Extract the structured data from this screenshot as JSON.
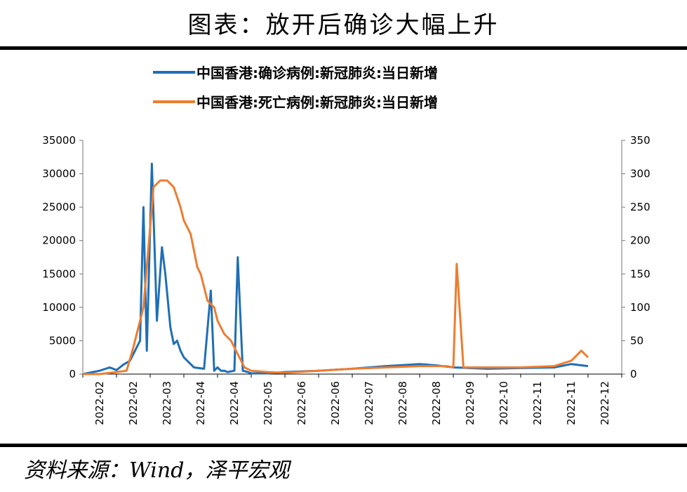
{
  "figure_title": "图表：放开后确诊大幅上升",
  "source": "资料来源：Wind，泽平宏观",
  "chart_data": {
    "type": "line",
    "title": "",
    "x_tick_labels": [
      "2022-02",
      "2022-02",
      "2022-03",
      "2022-04",
      "2022-04",
      "2022-05",
      "2022-06",
      "2022-06",
      "2022-07",
      "2022-08",
      "2022-08",
      "2022-09",
      "2022-10",
      "2022-11",
      "2022-11",
      "2022-12"
    ],
    "y_left": {
      "range": [
        0,
        35000
      ],
      "ticks": [
        "0",
        "5000",
        "10000",
        "15000",
        "20000",
        "25000",
        "30000",
        "35000"
      ]
    },
    "y_right": {
      "range": [
        0,
        350
      ],
      "ticks": [
        "0",
        "50",
        "100",
        "150",
        "200",
        "250",
        "300",
        "350"
      ]
    },
    "grid": false,
    "legend_position": "top",
    "series": [
      {
        "name": "中国香港:确诊病例:新冠肺炎:当日新增",
        "axis": "left",
        "color": "#1f6fb5",
        "x_index": [
          0,
          0.5,
          0.8,
          1.0,
          1.2,
          1.4,
          1.7,
          1.8,
          1.9,
          2.05,
          2.2,
          2.35,
          2.45,
          2.6,
          2.7,
          2.8,
          2.9,
          3.0,
          3.3,
          3.6,
          3.8,
          3.9,
          4.0,
          4.1,
          4.2,
          4.3,
          4.5,
          4.6,
          4.75,
          4.9,
          5.0,
          5.5,
          6,
          7,
          8,
          9,
          10,
          10.5,
          11,
          11.5,
          12,
          13,
          14,
          14.5,
          15
        ],
        "values": [
          0,
          500,
          1000,
          600,
          1400,
          2000,
          5000,
          25000,
          3500,
          31500,
          8000,
          19000,
          15000,
          7000,
          4500,
          5000,
          3500,
          2500,
          1000,
          800,
          12500,
          500,
          1000,
          500,
          500,
          300,
          500,
          17500,
          500,
          300,
          100,
          100,
          300,
          500,
          800,
          1200,
          1500,
          1300,
          1000,
          900,
          800,
          900,
          1000,
          1500,
          1200
        ]
      },
      {
        "name": "中国香港:死亡病例:新冠肺炎:当日新增",
        "axis": "right",
        "color": "#ed7d31",
        "x_index": [
          0,
          0.5,
          1.0,
          1.3,
          1.5,
          1.8,
          2.0,
          2.1,
          2.3,
          2.5,
          2.7,
          2.9,
          3.0,
          3.2,
          3.4,
          3.5,
          3.7,
          3.9,
          4.0,
          4.2,
          4.4,
          4.6,
          4.8,
          5.0,
          5.5,
          6,
          7,
          8,
          9,
          10,
          10.8,
          11.0,
          11.1,
          11.3,
          12,
          13,
          14,
          14.5,
          14.8,
          15
        ],
        "values": [
          0,
          0,
          3,
          5,
          40,
          100,
          220,
          280,
          290,
          290,
          280,
          250,
          230,
          210,
          160,
          150,
          110,
          100,
          80,
          60,
          50,
          30,
          10,
          5,
          3,
          2,
          5,
          8,
          10,
          12,
          12,
          10,
          165,
          10,
          10,
          10,
          12,
          20,
          35,
          25
        ]
      }
    ]
  }
}
